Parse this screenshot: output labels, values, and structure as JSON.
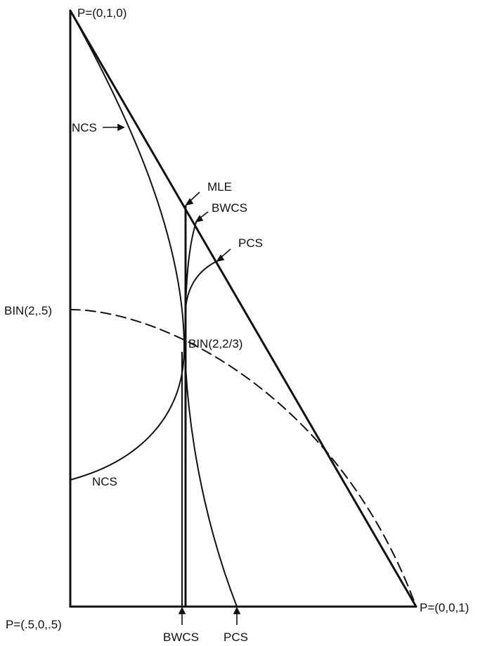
{
  "diagram": {
    "vertices": {
      "top": "P=(0,1,0)",
      "bottom_left": "P=(.5,0,.5)",
      "bottom_right": "P=(0,0,1)"
    },
    "curve_labels": {
      "ncs_upper": "NCS",
      "ncs_lower": "NCS",
      "mle": "MLE",
      "bwcs_upper": "BWCS",
      "pcs_upper": "PCS",
      "bwcs_bottom": "BWCS",
      "pcs_bottom": "PCS"
    },
    "binomial_labels": {
      "half": "BIN(2,.5)",
      "two_thirds": "BIN(2,2/3)"
    },
    "colors": {
      "ink": "#111111",
      "background": "#ffffff"
    }
  }
}
